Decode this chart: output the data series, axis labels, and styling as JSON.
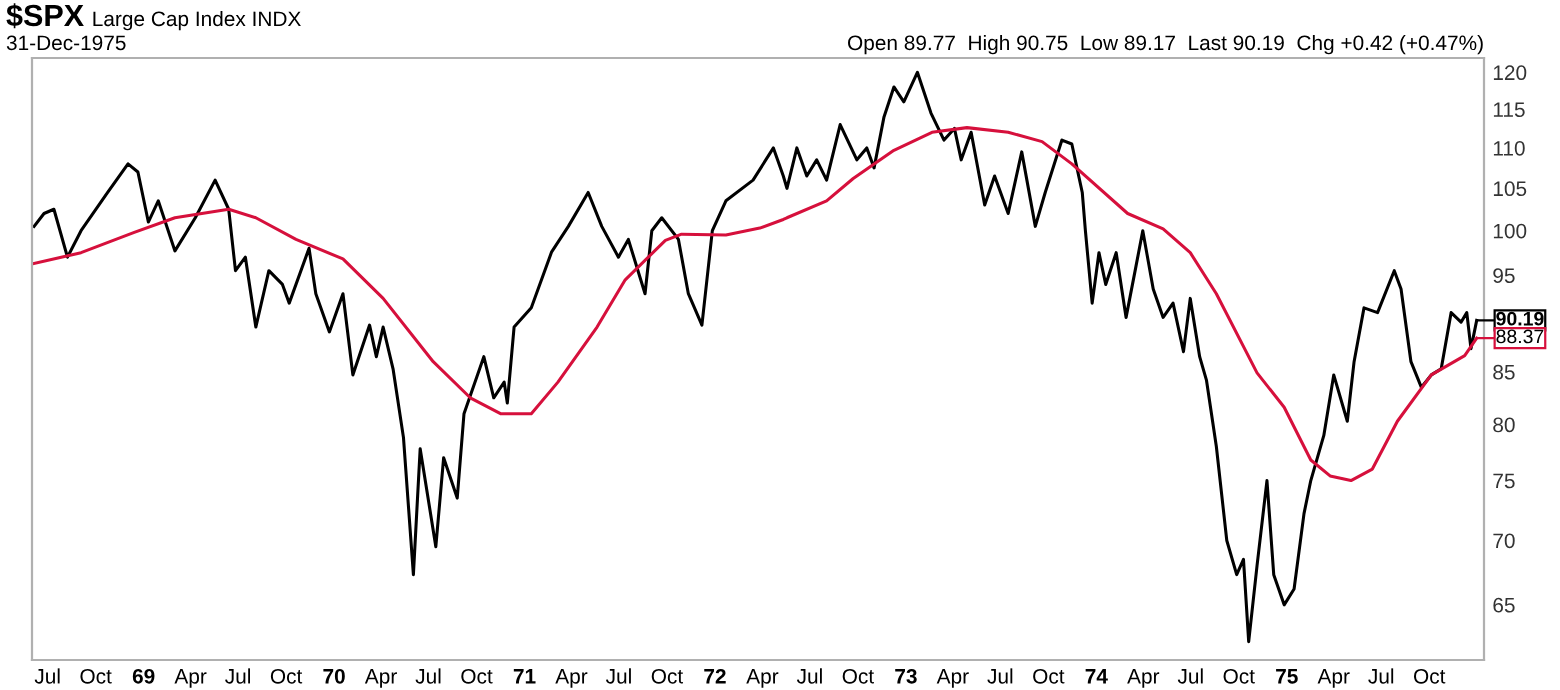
{
  "chart_data": {
    "type": "line",
    "title": "$SPX",
    "subtitle": "Large Cap Index INDX",
    "annotations": [
      "31-Dec-1975",
      "Open 89.77  High 90.75  Low 89.17  Last 90.19  Chg +0.42 (+0.47%)",
      {
        "text": "90.19",
        "x": "1975-12-31",
        "y": 90.19
      },
      {
        "text": "88.37",
        "x": "1975-12-31",
        "y": 88.37
      }
    ],
    "log": true,
    "grid": false,
    "marker": "none",
    "line_style": "solid",
    "xlim": [
      "1968-06-01",
      "1976-01-14"
    ],
    "ylim": [
      61,
      122
    ],
    "yticks": [
      65,
      70,
      75,
      80,
      85,
      95,
      100,
      105,
      110,
      115,
      120
    ],
    "xticks": [
      {
        "value": "1968-07-01",
        "label": "Jul"
      },
      {
        "value": "1968-10-01",
        "label": "Oct"
      },
      {
        "value": "1969-01-01",
        "label": "69"
      },
      {
        "value": "1969-04-01",
        "label": "Apr"
      },
      {
        "value": "1969-07-01",
        "label": "Jul"
      },
      {
        "value": "1969-10-01",
        "label": "Oct"
      },
      {
        "value": "1970-01-01",
        "label": "70"
      },
      {
        "value": "1970-04-01",
        "label": "Apr"
      },
      {
        "value": "1970-07-01",
        "label": "Jul"
      },
      {
        "value": "1970-10-01",
        "label": "Oct"
      },
      {
        "value": "1971-01-01",
        "label": "71"
      },
      {
        "value": "1971-04-01",
        "label": "Apr"
      },
      {
        "value": "1971-07-01",
        "label": "Jul"
      },
      {
        "value": "1971-10-01",
        "label": "Oct"
      },
      {
        "value": "1972-01-01",
        "label": "72"
      },
      {
        "value": "1972-04-01",
        "label": "Apr"
      },
      {
        "value": "1972-07-01",
        "label": "Jul"
      },
      {
        "value": "1972-10-01",
        "label": "Oct"
      },
      {
        "value": "1973-01-01",
        "label": "73"
      },
      {
        "value": "1973-04-01",
        "label": "Apr"
      },
      {
        "value": "1973-07-01",
        "label": "Jul"
      },
      {
        "value": "1973-10-01",
        "label": "Oct"
      },
      {
        "value": "1974-01-01",
        "label": "74"
      },
      {
        "value": "1974-04-01",
        "label": "Apr"
      },
      {
        "value": "1974-07-01",
        "label": "Jul"
      },
      {
        "value": "1974-10-01",
        "label": "Oct"
      },
      {
        "value": "1975-01-01",
        "label": "75"
      },
      {
        "value": "1975-04-01",
        "label": "Apr"
      },
      {
        "value": "1975-07-01",
        "label": "Jul"
      },
      {
        "value": "1975-10-01",
        "label": "Oct"
      }
    ],
    "series": [
      {
        "color": "#000000",
        "x": [
          "1968-06-05",
          "1968-06-24",
          "1968-07-13",
          "1968-08-08",
          "1968-09-03",
          "1968-10-24",
          "1968-12-02",
          "1968-12-21",
          "1969-01-10",
          "1969-01-29",
          "1969-03-02",
          "1969-04-10",
          "1969-05-18",
          "1969-06-13",
          "1969-06-26",
          "1969-07-15",
          "1969-08-04",
          "1969-08-29",
          "1969-09-24",
          "1969-10-07",
          "1969-11-14",
          "1969-11-27",
          "1969-12-23",
          "1970-01-18",
          "1970-02-06",
          "1970-03-10",
          "1970-03-23",
          "1970-04-05",
          "1970-04-24",
          "1970-05-14",
          "1970-06-02",
          "1970-06-15",
          "1970-07-15",
          "1970-07-30",
          "1970-08-25",
          "1970-09-07",
          "1970-10-15",
          "1970-11-03",
          "1970-11-23",
          "1970-11-29",
          "1970-12-12",
          "1971-01-14",
          "1971-02-22",
          "1971-03-26",
          "1971-05-03",
          "1971-05-29",
          "1971-06-30",
          "1971-07-19",
          "1971-08-20",
          "1971-09-02",
          "1971-09-21",
          "1971-10-23",
          "1971-11-11",
          "1971-12-07",
          "1971-12-27",
          "1972-01-22",
          "1972-03-14",
          "1972-04-22",
          "1972-05-11",
          "1972-05-18",
          "1972-06-06",
          "1972-06-25",
          "1972-07-14",
          "1972-08-02",
          "1972-08-28",
          "1972-09-29",
          "1972-10-18",
          "1972-11-01",
          "1972-11-20",
          "1972-12-09",
          "1972-12-28",
          "1973-01-23",
          "1973-02-18",
          "1973-03-15",
          "1973-04-04",
          "1973-04-17",
          "1973-05-06",
          "1973-06-01",
          "1973-06-20",
          "1973-07-16",
          "1973-08-11",
          "1973-09-06",
          "1973-09-25",
          "1973-10-27",
          "1973-11-15",
          "1973-12-05",
          "1973-12-11",
          "1973-12-24",
          "1974-01-06",
          "1974-01-19",
          "1974-02-08",
          "1974-02-27",
          "1974-03-18",
          "1974-03-31",
          "1974-04-20",
          "1974-05-09",
          "1974-05-28",
          "1974-06-17",
          "1974-06-30",
          "1974-07-18",
          "1974-07-31",
          "1974-08-19",
          "1974-09-08",
          "1974-09-27",
          "1974-10-10",
          "1974-10-20",
          "1974-11-05",
          "1974-11-24",
          "1974-12-07",
          "1974-12-27",
          "1975-01-15",
          "1975-02-03",
          "1975-02-16",
          "1975-03-13",
          "1975-04-01",
          "1975-04-27",
          "1975-05-10",
          "1975-05-29",
          "1975-06-24",
          "1975-07-26",
          "1975-08-08",
          "1975-08-27",
          "1975-09-16",
          "1975-10-05",
          "1975-10-24",
          "1975-11-12",
          "1975-12-01",
          "1975-12-12",
          "1975-12-20",
          "1975-12-31"
        ],
        "values": [
          100.5,
          102,
          102.5,
          97,
          100,
          104.5,
          108,
          107,
          101,
          103.5,
          97.7,
          101.5,
          106,
          102.5,
          95.5,
          97,
          89.5,
          95.5,
          94,
          92,
          98,
          93,
          89,
          93,
          84.7,
          89.7,
          86.5,
          89.5,
          85.3,
          78.8,
          67.3,
          77.8,
          69.5,
          77,
          73.5,
          81,
          86.5,
          82.5,
          84,
          82,
          89.5,
          91.5,
          97.6,
          100.5,
          104.5,
          100.5,
          97,
          99,
          93,
          100,
          101.5,
          99,
          93,
          89.7,
          100,
          103.5,
          106,
          110,
          106.5,
          105,
          110,
          106.5,
          108.5,
          106,
          113,
          108.5,
          110,
          107.5,
          114,
          118,
          116,
          120,
          114.5,
          111,
          112.5,
          108.5,
          112,
          103,
          106.5,
          102,
          109.5,
          100.5,
          104.5,
          111,
          110.5,
          104.5,
          100,
          92,
          97.5,
          94,
          97.5,
          90.5,
          96,
          100,
          93.5,
          90.5,
          92,
          87,
          92.5,
          86.5,
          84.2,
          78,
          70,
          67.3,
          68.5,
          62.3,
          68,
          75,
          67.3,
          65,
          66.2,
          72.2,
          75,
          79,
          84.7,
          80.3,
          86,
          91.5,
          91,
          95.5,
          93.5,
          86,
          83.5,
          84.7,
          85.3,
          91,
          90,
          91,
          87.3,
          90.19
        ]
      },
      {
        "color": "#d6103c",
        "x": [
          "1968-06-05",
          "1968-09-03",
          "1968-12-14",
          "1969-03-02",
          "1969-06-13",
          "1969-08-04",
          "1969-10-20",
          "1970-01-18",
          "1970-04-05",
          "1970-07-10",
          "1970-09-19",
          "1970-11-16",
          "1971-01-14",
          "1971-03-06",
          "1971-05-20",
          "1971-07-13",
          "1971-09-28",
          "1971-10-29",
          "1972-01-22",
          "1972-03-27",
          "1972-05-11",
          "1972-05-18",
          "1972-08-02",
          "1972-09-22",
          "1972-12-09",
          "1973-02-20",
          "1973-04-28",
          "1973-07-16",
          "1973-09-19",
          "1973-11-15",
          "1974-03-02",
          "1974-05-09",
          "1974-06-30",
          "1974-08-19",
          "1974-11-05",
          "1974-12-27",
          "1975-02-16",
          "1975-03-25",
          "1975-05-04",
          "1975-06-14",
          "1975-08-01",
          "1975-10-05",
          "1975-12-08",
          "1975-12-31"
        ],
        "values": [
          96.3,
          97.5,
          99.8,
          101.5,
          102.5,
          101.5,
          99,
          96.8,
          92.5,
          86,
          82.5,
          81,
          81,
          84,
          89.5,
          94.5,
          98.9,
          99.6,
          99.5,
          100.3,
          101.3,
          101.5,
          103.5,
          106.2,
          109.7,
          112,
          112.6,
          112,
          110.8,
          108,
          102,
          100.2,
          97.5,
          93,
          84.9,
          81.6,
          76.8,
          75.4,
          75,
          76,
          80.3,
          84.7,
          86.6,
          88.37
        ]
      }
    ]
  }
}
